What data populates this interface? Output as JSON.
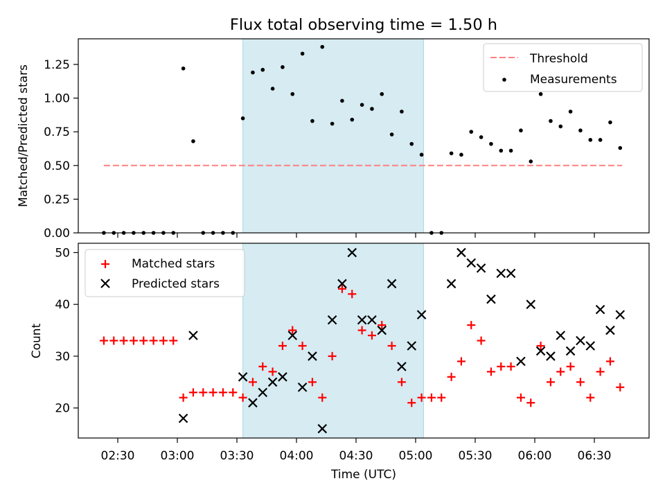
{
  "title": "Flux total observing time = 1.50 h",
  "xlabel": "Time (UTC)",
  "x_ticks": [
    "02:30",
    "03:00",
    "03:30",
    "04:00",
    "04:30",
    "05:00",
    "05:30",
    "06:00",
    "06:30"
  ],
  "shaded_interval": {
    "start": "03:33",
    "end": "05:04",
    "color": "#add8e6"
  },
  "chart_data": [
    {
      "type": "scatter",
      "ylabel": "Matched/Predicted stars",
      "ylim": [
        0,
        1.44
      ],
      "y_ticks": [
        "0.00",
        "0.25",
        "0.50",
        "0.75",
        "1.00",
        "1.25"
      ],
      "grid": false,
      "legend_position": "top-right",
      "legend": {
        "threshold_label": "Threshold",
        "measurements_label": "Measurements"
      },
      "threshold": {
        "name": "Threshold",
        "value": 0.5,
        "x_start": "02:23",
        "x_end": "06:44",
        "color": "#ff7f7f",
        "style": "dashed"
      },
      "series": [
        {
          "name": "Measurements",
          "marker": "dot",
          "color": "#000000",
          "points": [
            [
              "02:23",
              0.0
            ],
            [
              "02:28",
              0.0
            ],
            [
              "02:33",
              0.0
            ],
            [
              "02:38",
              0.0
            ],
            [
              "02:43",
              0.0
            ],
            [
              "02:48",
              0.0
            ],
            [
              "02:53",
              0.0
            ],
            [
              "02:58",
              0.0
            ],
            [
              "03:03",
              1.22
            ],
            [
              "03:08",
              0.68
            ],
            [
              "03:13",
              0.0
            ],
            [
              "03:18",
              0.0
            ],
            [
              "03:23",
              0.0
            ],
            [
              "03:28",
              0.0
            ],
            [
              "03:33",
              0.85
            ],
            [
              "03:38",
              1.19
            ],
            [
              "03:43",
              1.21
            ],
            [
              "03:48",
              1.07
            ],
            [
              "03:53",
              1.23
            ],
            [
              "03:58",
              1.03
            ],
            [
              "04:03",
              1.33
            ],
            [
              "04:08",
              0.83
            ],
            [
              "04:13",
              1.38
            ],
            [
              "04:18",
              0.81
            ],
            [
              "04:23",
              0.98
            ],
            [
              "04:28",
              0.84
            ],
            [
              "04:33",
              0.95
            ],
            [
              "04:38",
              0.92
            ],
            [
              "04:43",
              1.03
            ],
            [
              "04:48",
              0.73
            ],
            [
              "04:53",
              0.9
            ],
            [
              "04:58",
              0.66
            ],
            [
              "05:03",
              0.58
            ],
            [
              "05:08",
              0.0
            ],
            [
              "05:13",
              0.0
            ],
            [
              "05:18",
              0.59
            ],
            [
              "05:23",
              0.58
            ],
            [
              "05:28",
              0.75
            ],
            [
              "05:33",
              0.71
            ],
            [
              "05:38",
              0.66
            ],
            [
              "05:43",
              0.61
            ],
            [
              "05:48",
              0.61
            ],
            [
              "05:53",
              0.76
            ],
            [
              "05:58",
              0.53
            ],
            [
              "06:03",
              1.03
            ],
            [
              "06:08",
              0.83
            ],
            [
              "06:13",
              0.79
            ],
            [
              "06:18",
              0.9
            ],
            [
              "06:23",
              0.76
            ],
            [
              "06:28",
              0.69
            ],
            [
              "06:33",
              0.69
            ],
            [
              "06:38",
              0.82
            ],
            [
              "06:43",
              0.63
            ]
          ]
        }
      ]
    },
    {
      "type": "scatter",
      "ylabel": "Count",
      "ylim": [
        14.2,
        51.8
      ],
      "y_ticks": [
        "20",
        "30",
        "40",
        "50"
      ],
      "grid": false,
      "legend_position": "top-left",
      "series": [
        {
          "name": "Matched stars",
          "marker": "plus",
          "color": "#ff0000",
          "points": [
            [
              "02:23",
              33
            ],
            [
              "02:28",
              33
            ],
            [
              "02:33",
              33
            ],
            [
              "02:38",
              33
            ],
            [
              "02:43",
              33
            ],
            [
              "02:48",
              33
            ],
            [
              "02:53",
              33
            ],
            [
              "02:58",
              33
            ],
            [
              "03:03",
              22
            ],
            [
              "03:08",
              23
            ],
            [
              "03:13",
              23
            ],
            [
              "03:18",
              23
            ],
            [
              "03:23",
              23
            ],
            [
              "03:28",
              23
            ],
            [
              "03:33",
              22
            ],
            [
              "03:38",
              25
            ],
            [
              "03:43",
              28
            ],
            [
              "03:48",
              27
            ],
            [
              "03:53",
              32
            ],
            [
              "03:58",
              35
            ],
            [
              "04:03",
              32
            ],
            [
              "04:08",
              25
            ],
            [
              "04:13",
              22
            ],
            [
              "04:18",
              30
            ],
            [
              "04:23",
              43
            ],
            [
              "04:28",
              42
            ],
            [
              "04:33",
              35
            ],
            [
              "04:38",
              34
            ],
            [
              "04:43",
              36
            ],
            [
              "04:48",
              32
            ],
            [
              "04:53",
              25
            ],
            [
              "04:58",
              21
            ],
            [
              "05:03",
              22
            ],
            [
              "05:08",
              22
            ],
            [
              "05:13",
              22
            ],
            [
              "05:18",
              26
            ],
            [
              "05:23",
              29
            ],
            [
              "05:28",
              36
            ],
            [
              "05:33",
              33
            ],
            [
              "05:38",
              27
            ],
            [
              "05:43",
              28
            ],
            [
              "05:48",
              28
            ],
            [
              "05:53",
              22
            ],
            [
              "05:58",
              21
            ],
            [
              "06:03",
              32
            ],
            [
              "06:08",
              25
            ],
            [
              "06:13",
              27
            ],
            [
              "06:18",
              28
            ],
            [
              "06:23",
              25
            ],
            [
              "06:28",
              22
            ],
            [
              "06:33",
              27
            ],
            [
              "06:38",
              29
            ],
            [
              "06:43",
              24
            ]
          ]
        },
        {
          "name": "Predicted stars",
          "marker": "x",
          "color": "#000000",
          "points": [
            [
              "03:03",
              18
            ],
            [
              "03:08",
              34
            ],
            [
              "03:33",
              26
            ],
            [
              "03:38",
              21
            ],
            [
              "03:43",
              23
            ],
            [
              "03:48",
              25
            ],
            [
              "03:53",
              26
            ],
            [
              "03:58",
              34
            ],
            [
              "04:03",
              24
            ],
            [
              "04:08",
              30
            ],
            [
              "04:13",
              16
            ],
            [
              "04:18",
              37
            ],
            [
              "04:23",
              44
            ],
            [
              "04:28",
              50
            ],
            [
              "04:33",
              37
            ],
            [
              "04:38",
              37
            ],
            [
              "04:43",
              35
            ],
            [
              "04:48",
              44
            ],
            [
              "04:53",
              28
            ],
            [
              "04:58",
              32
            ],
            [
              "05:03",
              38
            ],
            [
              "05:18",
              44
            ],
            [
              "05:23",
              50
            ],
            [
              "05:28",
              48
            ],
            [
              "05:33",
              47
            ],
            [
              "05:38",
              41
            ],
            [
              "05:43",
              46
            ],
            [
              "05:48",
              46
            ],
            [
              "05:53",
              29
            ],
            [
              "05:58",
              40
            ],
            [
              "06:03",
              31
            ],
            [
              "06:08",
              30
            ],
            [
              "06:13",
              34
            ],
            [
              "06:18",
              31
            ],
            [
              "06:23",
              33
            ],
            [
              "06:28",
              32
            ],
            [
              "06:33",
              39
            ],
            [
              "06:38",
              35
            ],
            [
              "06:43",
              38
            ]
          ]
        }
      ]
    }
  ]
}
